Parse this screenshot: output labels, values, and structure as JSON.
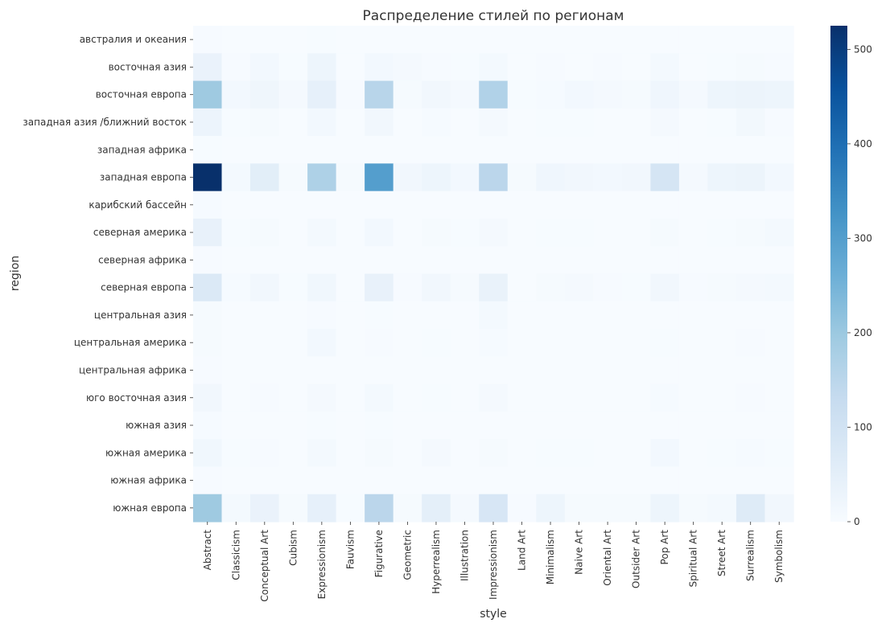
{
  "chart_data": {
    "type": "heatmap",
    "title": "Распределение стилей по регионам",
    "xlabel": "style",
    "ylabel": "region",
    "colormap": "Blues",
    "vmin": 0,
    "vmax": 525,
    "colorbar_ticks": [
      0,
      100,
      200,
      300,
      400,
      500
    ],
    "colors": {
      "low": "#f7fbff",
      "high": "#08306b",
      "text": "#333333"
    },
    "x_categories": [
      "Abstract",
      "Classicism",
      "Conceptual Art",
      "Cubism",
      "Expressionism",
      "Fauvism",
      "Figurative",
      "Geometric",
      "Hyperrealism",
      "Illustration",
      "Impressionism",
      "Land Art",
      "Minimalism",
      "Naive Art",
      "Oriental Art",
      "Outsider Art",
      "Pop Art",
      "Spiritual Art",
      "Street Art",
      "Surrealism",
      "Symbolism"
    ],
    "y_categories": [
      "австралия и океания",
      "восточная азия",
      "восточная европа",
      "западная азия /ближний восток",
      "западная африка",
      "западная европа",
      "карибский бассейн",
      "северная америка",
      "северная африка",
      "северная европа",
      "центральная азия",
      "центральная америка",
      "центральная африка",
      "юго восточная азия",
      "южная азия",
      "южная америка",
      "южная африка",
      "южная европа"
    ],
    "values": [
      [
        3,
        0,
        1,
        0,
        2,
        0,
        1,
        0,
        0,
        0,
        1,
        0,
        0,
        0,
        0,
        0,
        1,
        0,
        0,
        1,
        0
      ],
      [
        35,
        3,
        12,
        2,
        25,
        1,
        12,
        8,
        3,
        2,
        10,
        0,
        3,
        1,
        3,
        1,
        10,
        1,
        2,
        6,
        3
      ],
      [
        195,
        12,
        22,
        8,
        45,
        3,
        155,
        5,
        15,
        8,
        165,
        2,
        4,
        12,
        8,
        5,
        20,
        8,
        25,
        30,
        25
      ],
      [
        28,
        2,
        5,
        1,
        12,
        0,
        15,
        1,
        4,
        1,
        8,
        0,
        2,
        2,
        1,
        1,
        8,
        1,
        2,
        14,
        3
      ],
      [
        2,
        0,
        0,
        0,
        1,
        0,
        1,
        0,
        0,
        0,
        0,
        0,
        0,
        0,
        0,
        0,
        0,
        0,
        0,
        0,
        0
      ],
      [
        525,
        10,
        55,
        5,
        170,
        5,
        300,
        15,
        25,
        12,
        150,
        5,
        20,
        15,
        12,
        15,
        90,
        8,
        25,
        30,
        12
      ],
      [
        4,
        0,
        0,
        0,
        1,
        0,
        1,
        0,
        0,
        0,
        1,
        0,
        0,
        0,
        0,
        0,
        0,
        0,
        0,
        0,
        0
      ],
      [
        40,
        2,
        6,
        1,
        10,
        0,
        12,
        1,
        5,
        2,
        8,
        0,
        2,
        2,
        1,
        1,
        5,
        1,
        2,
        5,
        10
      ],
      [
        3,
        0,
        0,
        0,
        1,
        0,
        1,
        0,
        0,
        0,
        0,
        0,
        0,
        0,
        0,
        0,
        0,
        0,
        0,
        0,
        0
      ],
      [
        75,
        4,
        15,
        2,
        18,
        1,
        40,
        3,
        15,
        5,
        38,
        1,
        5,
        8,
        3,
        2,
        15,
        3,
        5,
        8,
        10
      ],
      [
        5,
        0,
        1,
        0,
        3,
        0,
        2,
        0,
        1,
        0,
        10,
        0,
        0,
        0,
        0,
        0,
        1,
        0,
        0,
        1,
        0
      ],
      [
        6,
        0,
        1,
        0,
        12,
        0,
        3,
        0,
        2,
        0,
        4,
        0,
        0,
        0,
        0,
        0,
        2,
        0,
        0,
        3,
        0
      ],
      [
        3,
        0,
        0,
        0,
        1,
        0,
        1,
        0,
        0,
        0,
        1,
        0,
        0,
        0,
        0,
        0,
        0,
        0,
        0,
        0,
        0
      ],
      [
        15,
        1,
        3,
        0,
        8,
        0,
        10,
        0,
        2,
        1,
        8,
        0,
        1,
        1,
        1,
        0,
        4,
        1,
        1,
        3,
        1
      ],
      [
        4,
        0,
        1,
        0,
        2,
        0,
        2,
        0,
        0,
        0,
        1,
        0,
        0,
        0,
        0,
        0,
        1,
        0,
        0,
        1,
        0
      ],
      [
        18,
        2,
        3,
        1,
        10,
        0,
        6,
        1,
        8,
        1,
        5,
        0,
        2,
        2,
        0,
        1,
        12,
        1,
        2,
        4,
        2
      ],
      [
        3,
        0,
        0,
        0,
        1,
        0,
        1,
        0,
        0,
        0,
        0,
        0,
        0,
        0,
        0,
        0,
        0,
        0,
        0,
        0,
        0
      ],
      [
        195,
        10,
        35,
        5,
        45,
        2,
        150,
        5,
        50,
        8,
        85,
        3,
        25,
        5,
        5,
        5,
        25,
        5,
        10,
        65,
        15
      ]
    ]
  }
}
